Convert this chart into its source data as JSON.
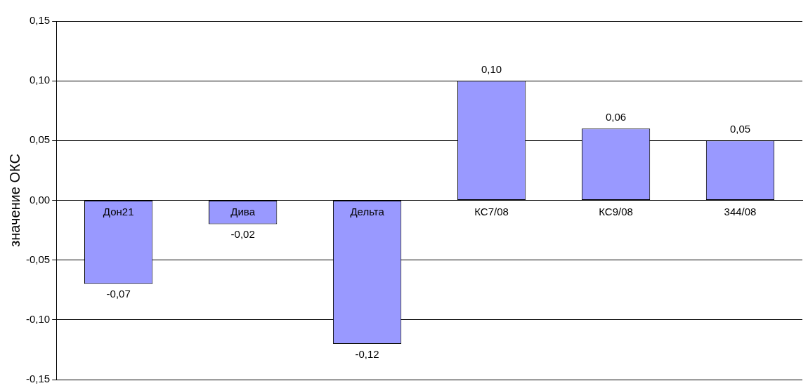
{
  "chart_data": {
    "type": "bar",
    "ylabel": "значение ОКС",
    "categories": [
      "Дон21",
      "Дива",
      "Дельта",
      "КС7/08",
      "КС9/08",
      "344/08"
    ],
    "values": [
      -0.07,
      -0.02,
      -0.12,
      0.1,
      0.06,
      0.05
    ],
    "value_labels": [
      "-0,07",
      "-0,02",
      "-0,12",
      "0,10",
      "0,06",
      "0,05"
    ],
    "color": "#9999ff",
    "ylim": [
      -0.15,
      0.15
    ],
    "yticks": [
      {
        "value": -0.15,
        "label": "-0,15"
      },
      {
        "value": -0.1,
        "label": "-0,10"
      },
      {
        "value": -0.05,
        "label": "-0,05"
      },
      {
        "value": 0,
        "label": "0,00"
      },
      {
        "value": 0.05,
        "label": "0,05"
      },
      {
        "value": 0.1,
        "label": "0,10"
      },
      {
        "value": 0.15,
        "label": "0,15"
      }
    ],
    "grid": "y",
    "legend": false
  }
}
